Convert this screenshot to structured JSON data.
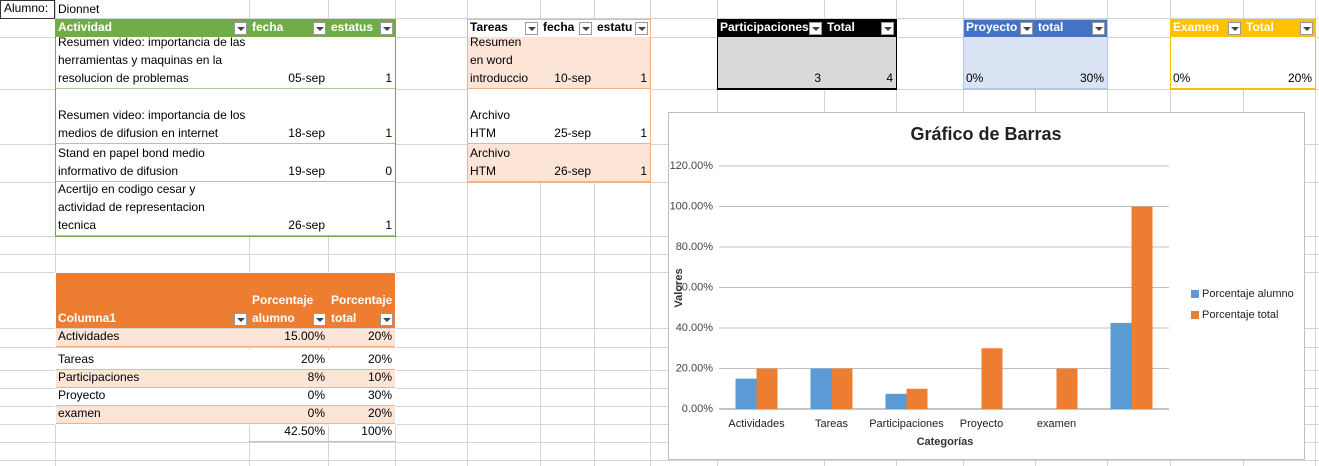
{
  "alumno": {
    "label": "Alumno:",
    "name": "Dionnet"
  },
  "actividades": {
    "headers": [
      "Actividad",
      "fecha",
      "estatus"
    ],
    "rows": [
      [
        "Resumen video: importancia de las herramientas y maquinas en la resolucion de problemas",
        "05-sep",
        1
      ],
      [
        "Resumen video: importancia de los medios de difusion en internet",
        "18-sep",
        1
      ],
      [
        "Stand en papel bond medio informativo de difusion",
        "19-sep",
        0
      ],
      [
        "Acertijo en codigo cesar y actividad de representacion tecnica",
        "26-sep",
        1
      ]
    ]
  },
  "tareas": {
    "headers": [
      "Tareas",
      "fecha",
      "estatu"
    ],
    "rows": [
      [
        "Resumen en word introduccio",
        "10-sep",
        1
      ],
      [
        "Archivo HTM",
        "25-sep",
        1
      ],
      [
        "Archivo HTM",
        "26-sep",
        1
      ]
    ]
  },
  "participaciones": {
    "headers": [
      "Participaciones",
      "Total"
    ],
    "rows": [
      [
        3,
        4
      ]
    ]
  },
  "proyecto": {
    "headers": [
      "Proyecto",
      "total"
    ],
    "rows": [
      [
        "0%",
        "30%"
      ]
    ]
  },
  "examen": {
    "headers": [
      "Examen",
      "Total"
    ],
    "rows": [
      [
        "0%",
        "20%"
      ]
    ]
  },
  "resumen": {
    "headers": [
      "Columna1",
      "Porcentaje alumno",
      "Porcentaje total"
    ],
    "rows": [
      [
        "Actividades",
        "15.00%",
        "20%"
      ],
      [
        "Tareas",
        "20%",
        "20%"
      ],
      [
        "Participaciones",
        "8%",
        "10%"
      ],
      [
        "Proyecto",
        "0%",
        "30%"
      ],
      [
        "examen",
        "0%",
        "20%"
      ]
    ],
    "total": [
      "42.50%",
      "100%"
    ]
  },
  "chart_data": {
    "type": "bar",
    "title": "Gráfico de Barras",
    "x_label": "Categorías",
    "y_label": "Valores",
    "categories": [
      "Actividades",
      "Tareas",
      "Participaciones",
      "Proyecto",
      "examen",
      null
    ],
    "series": [
      {
        "name": "Porcentaje alumno",
        "color": "#5b9bd5",
        "values": [
          15,
          20,
          7.5,
          0,
          0,
          42.5
        ]
      },
      {
        "name": "Porcentaje total",
        "color": "#ed7d31",
        "values": [
          20,
          20,
          10,
          30,
          20,
          100
        ]
      }
    ],
    "ylim": [
      0,
      120
    ],
    "yticks": [
      {
        "value": 0,
        "label": "0.00%"
      },
      {
        "value": 20,
        "label": "20.00%"
      },
      {
        "value": 40,
        "label": "40.00%"
      },
      {
        "value": 60,
        "label": "60.00%"
      },
      {
        "value": 80,
        "label": "80.00%"
      },
      {
        "value": 100,
        "label": "100.00%"
      },
      {
        "value": 120,
        "label": "120.00%"
      }
    ],
    "grid": true,
    "legend": "right"
  }
}
